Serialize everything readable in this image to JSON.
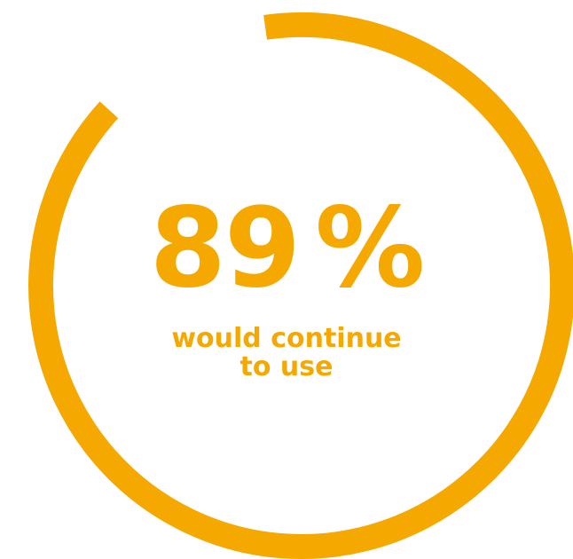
{
  "stat": {
    "value": "89",
    "unit": "%",
    "progress_percent": 89,
    "caption_line1": "would continue",
    "caption_line2": "to use"
  },
  "colors": {
    "accent": "#F5A800",
    "background": "#FFFFFF"
  }
}
